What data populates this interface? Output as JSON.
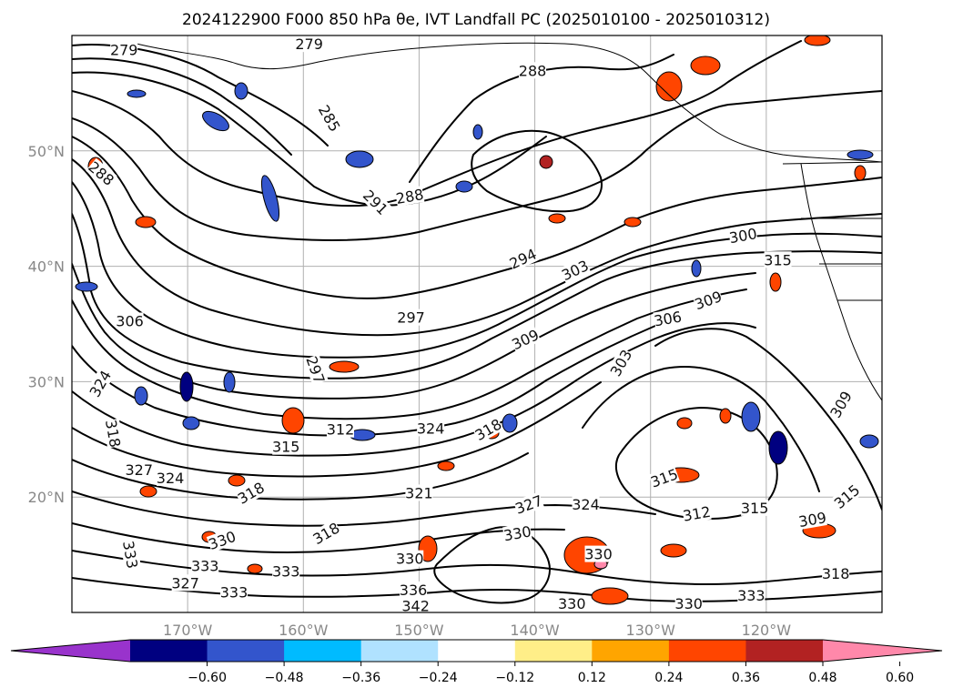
{
  "title": "2024122900 F000 850 hPa θe, IVT Landfall PC (2025010100 - 2025010312)",
  "map": {
    "lat_labels": [
      "50°N",
      "40°N",
      "30°N",
      "20°N"
    ],
    "lon_labels": [
      "170°W",
      "160°W",
      "150°W",
      "140°W",
      "130°W",
      "120°W"
    ],
    "lat_values": [
      50,
      40,
      30,
      20
    ],
    "lon_values": [
      -170,
      -160,
      -150,
      -140,
      -130,
      -120
    ],
    "extent": {
      "lon_min": -180,
      "lon_max": -110,
      "lat_min": 10,
      "lat_max": 60
    },
    "grid": true
  },
  "contour_labels": [
    {
      "text": "279",
      "lon": -175.5,
      "lat": 58.7,
      "rot": 0
    },
    {
      "text": "279",
      "lon": -159.5,
      "lat": 59.2,
      "rot": 0
    },
    {
      "text": "288",
      "lon": -140.2,
      "lat": 56.9,
      "rot": 0
    },
    {
      "text": "285",
      "lon": -157.8,
      "lat": 52.8,
      "rot": 60
    },
    {
      "text": "288",
      "lon": -150.8,
      "lat": 46.0,
      "rot": -10
    },
    {
      "text": "291",
      "lon": -153.8,
      "lat": 45.5,
      "rot": 45
    },
    {
      "text": "288",
      "lon": -177.5,
      "lat": 48.0,
      "rot": 40
    },
    {
      "text": "294",
      "lon": -141.0,
      "lat": 40.6,
      "rot": -25
    },
    {
      "text": "300",
      "lon": -122.0,
      "lat": 42.6,
      "rot": -10
    },
    {
      "text": "303",
      "lon": -136.5,
      "lat": 39.6,
      "rot": -25
    },
    {
      "text": "315",
      "lon": -119.0,
      "lat": 40.5,
      "rot": 0
    },
    {
      "text": "297",
      "lon": -150.7,
      "lat": 35.5,
      "rot": 0
    },
    {
      "text": "309",
      "lon": -125.0,
      "lat": 37.0,
      "rot": -20
    },
    {
      "text": "306",
      "lon": -128.5,
      "lat": 35.4,
      "rot": -10
    },
    {
      "text": "309",
      "lon": -140.8,
      "lat": 33.6,
      "rot": -25
    },
    {
      "text": "306",
      "lon": -175.0,
      "lat": 35.2,
      "rot": 0
    },
    {
      "text": "303",
      "lon": -132.5,
      "lat": 31.6,
      "rot": -60
    },
    {
      "text": "297",
      "lon": -159.0,
      "lat": 31.0,
      "rot": 70
    },
    {
      "text": "324",
      "lon": -177.5,
      "lat": 29.8,
      "rot": -60
    },
    {
      "text": "309",
      "lon": -113.5,
      "lat": 28.0,
      "rot": -60
    },
    {
      "text": "318",
      "lon": -176.5,
      "lat": 25.5,
      "rot": 80
    },
    {
      "text": "324",
      "lon": -149.0,
      "lat": 25.9,
      "rot": 0
    },
    {
      "text": "312",
      "lon": -156.8,
      "lat": 25.8,
      "rot": 0
    },
    {
      "text": "318",
      "lon": -144.0,
      "lat": 25.8,
      "rot": -30
    },
    {
      "text": "315",
      "lon": -161.5,
      "lat": 24.3,
      "rot": 0
    },
    {
      "text": "327",
      "lon": -174.2,
      "lat": 22.3,
      "rot": 0
    },
    {
      "text": "324",
      "lon": -171.5,
      "lat": 21.6,
      "rot": 0
    },
    {
      "text": "315",
      "lon": -128.8,
      "lat": 21.6,
      "rot": -20
    },
    {
      "text": "327",
      "lon": -140.5,
      "lat": 19.3,
      "rot": -20
    },
    {
      "text": "324",
      "lon": -135.6,
      "lat": 19.3,
      "rot": 0
    },
    {
      "text": "315",
      "lon": -121.0,
      "lat": 19.0,
      "rot": 0
    },
    {
      "text": "315",
      "lon": -113.0,
      "lat": 20.0,
      "rot": -40
    },
    {
      "text": "312",
      "lon": -126.0,
      "lat": 18.5,
      "rot": -10
    },
    {
      "text": "309",
      "lon": -116.0,
      "lat": 18.0,
      "rot": -10
    },
    {
      "text": "318",
      "lon": -164.5,
      "lat": 20.3,
      "rot": -30
    },
    {
      "text": "321",
      "lon": -150.0,
      "lat": 20.3,
      "rot": 0
    },
    {
      "text": "318",
      "lon": -158.0,
      "lat": 16.8,
      "rot": -30
    },
    {
      "text": "330",
      "lon": -141.5,
      "lat": 16.8,
      "rot": -10
    },
    {
      "text": "330",
      "lon": -167.0,
      "lat": 16.2,
      "rot": -20
    },
    {
      "text": "330",
      "lon": -134.5,
      "lat": 15.0,
      "rot": 0
    },
    {
      "text": "330",
      "lon": -150.8,
      "lat": 14.6,
      "rot": 0
    },
    {
      "text": "333",
      "lon": -168.5,
      "lat": 14.0,
      "rot": 0
    },
    {
      "text": "333",
      "lon": -161.5,
      "lat": 13.5,
      "rot": 0
    },
    {
      "text": "333",
      "lon": -175.0,
      "lat": 15.0,
      "rot": 80
    },
    {
      "text": "327",
      "lon": -170.2,
      "lat": 12.5,
      "rot": 0
    },
    {
      "text": "336",
      "lon": -150.5,
      "lat": 11.9,
      "rot": 0
    },
    {
      "text": "333",
      "lon": -166.0,
      "lat": 11.7,
      "rot": 0
    },
    {
      "text": "342",
      "lon": -150.3,
      "lat": 10.5,
      "rot": 0
    },
    {
      "text": "330",
      "lon": -136.8,
      "lat": 10.7,
      "rot": 0
    },
    {
      "text": "330",
      "lon": -126.7,
      "lat": 10.7,
      "rot": 0
    },
    {
      "text": "333",
      "lon": -121.3,
      "lat": 11.4,
      "rot": 0
    },
    {
      "text": "318",
      "lon": -114.0,
      "lat": 13.3,
      "rot": 0
    }
  ],
  "colorbar": {
    "colors": [
      "#9933cc",
      "#000080",
      "#3355cc",
      "#00bbff",
      "#b0e2ff",
      "#ffffff",
      "#ffee88",
      "#ffa500",
      "#ff4500",
      "#b22222",
      "#ff88aa"
    ],
    "tick_labels": [
      "−0.60",
      "−0.48",
      "−0.36",
      "−0.24",
      "−0.12",
      "0.12",
      "0.24",
      "0.36",
      "0.48",
      "0.60"
    ],
    "extend": "both"
  }
}
